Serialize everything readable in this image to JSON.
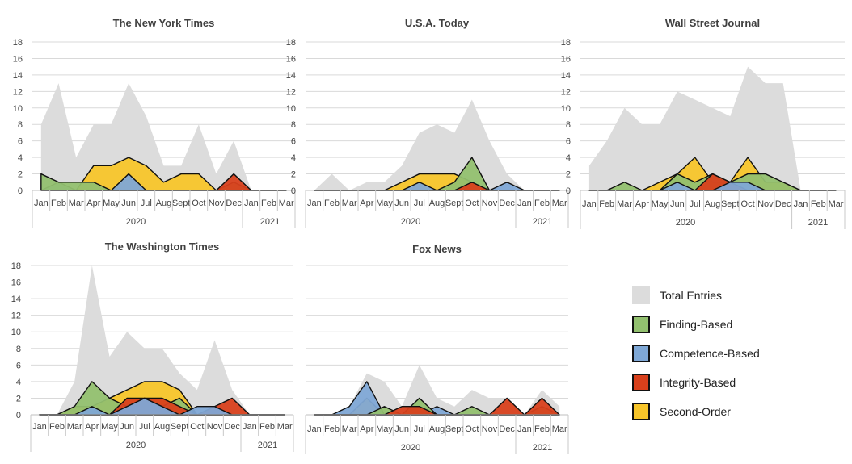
{
  "colors": {
    "total": "#dcdcdc",
    "finding": "#92c06f",
    "competence": "#7fa8d6",
    "integrity": "#d8401c",
    "second_order": "#f7c52a",
    "grid": "#d9d9d9",
    "axis_text": "#444444",
    "title_text": "#404040"
  },
  "legend": [
    {
      "key": "total",
      "label": "Total Entries"
    },
    {
      "key": "finding",
      "label": "Finding-Based"
    },
    {
      "key": "competence",
      "label": "Competence-Based"
    },
    {
      "key": "integrity",
      "label": "Integrity-Based"
    },
    {
      "key": "second_order",
      "label": "Second-Order"
    }
  ],
  "chart_data": [
    {
      "type": "area",
      "title": "The New York Times",
      "categories": [
        "Jan",
        "Feb",
        "Mar",
        "Apr",
        "May",
        "Jun",
        "Jul",
        "Aug",
        "Sept",
        "Oct",
        "Nov",
        "Dec",
        "Jan",
        "Feb",
        "Mar"
      ],
      "year_labels": [
        "2020",
        "2021"
      ],
      "ylim": [
        0,
        18
      ],
      "yticks": [
        0,
        2,
        4,
        6,
        8,
        10,
        12,
        14,
        16,
        18
      ],
      "series": [
        {
          "key": "total",
          "values": [
            8,
            13,
            4,
            8,
            8,
            13,
            9,
            3,
            3,
            8,
            2,
            6,
            0,
            0,
            0
          ]
        },
        {
          "key": "second_order",
          "values": [
            0,
            0,
            0,
            3,
            3,
            4,
            3,
            1,
            2,
            2,
            0,
            0,
            0,
            0,
            0
          ]
        },
        {
          "key": "competence",
          "values": [
            0,
            1,
            0,
            0,
            0,
            2,
            0,
            0,
            0,
            0,
            0,
            0,
            0,
            0,
            0
          ]
        },
        {
          "key": "finding",
          "values": [
            2,
            1,
            1,
            1,
            0,
            0,
            0,
            0,
            0,
            0,
            0,
            1,
            0,
            0,
            0
          ]
        },
        {
          "key": "integrity",
          "values": [
            0,
            0,
            0,
            0,
            0,
            0,
            0,
            0,
            0,
            0,
            0,
            2,
            0,
            0,
            0
          ]
        }
      ]
    },
    {
      "type": "area",
      "title": "U.S.A. Today",
      "categories": [
        "Jan",
        "Feb",
        "Mar",
        "Apr",
        "May",
        "Jun",
        "Jul",
        "Aug",
        "Sept",
        "Oct",
        "Nov",
        "Dec",
        "Jan",
        "Feb",
        "Mar"
      ],
      "year_labels": [
        "2020",
        "2021"
      ],
      "ylim": [
        0,
        18
      ],
      "yticks": [
        0,
        2,
        4,
        6,
        8,
        10,
        12,
        14,
        16,
        18
      ],
      "series": [
        {
          "key": "total",
          "values": [
            0,
            2,
            0,
            1,
            1,
            3,
            7,
            8,
            7,
            11,
            6,
            2,
            0,
            0,
            0
          ]
        },
        {
          "key": "second_order",
          "values": [
            0,
            0,
            0,
            0,
            0,
            1,
            2,
            2,
            2,
            1,
            0,
            0,
            0,
            0,
            0
          ]
        },
        {
          "key": "finding",
          "values": [
            0,
            0,
            0,
            0,
            0,
            0,
            0,
            0,
            1,
            4,
            0,
            0,
            0,
            0,
            0
          ]
        },
        {
          "key": "competence",
          "values": [
            0,
            0,
            0,
            0,
            0,
            0,
            1,
            0,
            0,
            0,
            0,
            1,
            0,
            0,
            0
          ]
        },
        {
          "key": "integrity",
          "values": [
            0,
            0,
            0,
            0,
            0,
            0,
            0,
            0,
            0,
            1,
            0,
            0,
            0,
            0,
            0
          ]
        }
      ]
    },
    {
      "type": "area",
      "title": "Wall Street Journal",
      "categories": [
        "Jan",
        "Feb",
        "Mar",
        "Apr",
        "May",
        "Jun",
        "Jul",
        "Aug",
        "Sept",
        "Oct",
        "Nov",
        "Dec",
        "Jan",
        "Feb",
        "Mar"
      ],
      "year_labels": [
        "2020",
        "2021"
      ],
      "ylim": [
        0,
        18
      ],
      "yticks": [
        0,
        2,
        4,
        6,
        8,
        10,
        12,
        14,
        16,
        18
      ],
      "series": [
        {
          "key": "total",
          "values": [
            3,
            6,
            10,
            8,
            8,
            12,
            11,
            10,
            9,
            15,
            13,
            13,
            0,
            0,
            0
          ]
        },
        {
          "key": "second_order",
          "values": [
            0,
            0,
            0,
            0,
            1,
            2,
            4,
            1,
            1,
            4,
            1,
            1,
            0,
            0,
            0
          ]
        },
        {
          "key": "finding",
          "values": [
            0,
            0,
            1,
            0,
            0,
            2,
            1,
            2,
            1,
            2,
            2,
            1,
            0,
            0,
            0
          ]
        },
        {
          "key": "integrity",
          "values": [
            0,
            0,
            0,
            0,
            0,
            0,
            0,
            2,
            1,
            0,
            0,
            0,
            0,
            0,
            0
          ]
        },
        {
          "key": "competence",
          "values": [
            0,
            0,
            0,
            0,
            0,
            1,
            0,
            0,
            1,
            1,
            0,
            0,
            0,
            0,
            0
          ]
        }
      ]
    },
    {
      "type": "area",
      "title": "The Washington Times",
      "categories": [
        "Jan",
        "Feb",
        "Mar",
        "Apr",
        "May",
        "Jun",
        "Jul",
        "Aug",
        "Sept",
        "Oct",
        "Nov",
        "Dec",
        "Jan",
        "Feb",
        "Mar"
      ],
      "year_labels": [
        "2020",
        "2021"
      ],
      "ylim": [
        0,
        18
      ],
      "yticks": [
        0,
        2,
        4,
        6,
        8,
        10,
        12,
        14,
        16,
        18
      ],
      "series": [
        {
          "key": "total",
          "values": [
            0,
            0,
            4,
            18,
            7,
            10,
            8,
            8,
            5,
            3,
            9,
            3,
            0,
            0,
            0
          ]
        },
        {
          "key": "second_order",
          "values": [
            0,
            0,
            1,
            1,
            2,
            3,
            4,
            4,
            3,
            0,
            0,
            0,
            0,
            0,
            0
          ]
        },
        {
          "key": "finding",
          "values": [
            0,
            0,
            1,
            4,
            2,
            1,
            2,
            1,
            2,
            0,
            0,
            0,
            0,
            0,
            0
          ]
        },
        {
          "key": "integrity",
          "values": [
            0,
            0,
            0,
            0,
            0,
            2,
            2,
            2,
            1,
            0,
            1,
            2,
            0,
            0,
            0
          ]
        },
        {
          "key": "competence",
          "values": [
            0,
            0,
            0,
            1,
            0,
            1,
            2,
            1,
            0,
            1,
            1,
            0,
            0,
            0,
            0
          ]
        }
      ]
    },
    {
      "type": "area",
      "title": "Fox News",
      "categories": [
        "Jan",
        "Feb",
        "Mar",
        "Apr",
        "May",
        "Jun",
        "Jul",
        "Aug",
        "Sept",
        "Oct",
        "Nov",
        "Dec",
        "Jan",
        "Feb",
        "Mar"
      ],
      "year_labels": [
        "2020",
        "2021"
      ],
      "ylim": [
        0,
        18
      ],
      "yticks": [
        0,
        2,
        4,
        6,
        8,
        10,
        12,
        14,
        16,
        18
      ],
      "show_y_axis": false,
      "series": [
        {
          "key": "total",
          "values": [
            0,
            0,
            1,
            5,
            4,
            1,
            6,
            2,
            1,
            3,
            2,
            2,
            0,
            3,
            1
          ]
        },
        {
          "key": "second_order",
          "values": [
            0,
            0,
            0,
            2,
            0,
            0,
            1,
            0,
            0,
            0,
            0,
            0,
            0,
            0,
            0
          ]
        },
        {
          "key": "competence",
          "values": [
            0,
            0,
            1,
            4,
            0,
            0,
            0,
            1,
            0,
            0,
            0,
            0,
            0,
            0,
            0
          ]
        },
        {
          "key": "finding",
          "values": [
            0,
            0,
            0,
            0,
            1,
            0,
            2,
            0,
            0,
            1,
            0,
            0,
            0,
            1,
            0
          ]
        },
        {
          "key": "integrity",
          "values": [
            0,
            0,
            0,
            0,
            0,
            1,
            1,
            0,
            0,
            0,
            0,
            2,
            0,
            2,
            0
          ]
        }
      ]
    }
  ]
}
